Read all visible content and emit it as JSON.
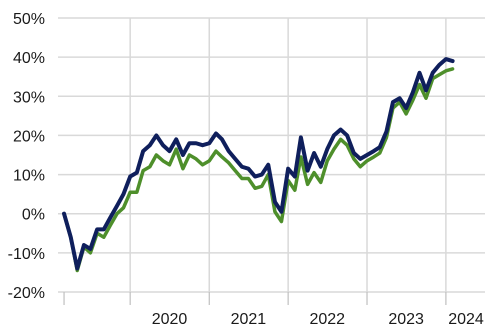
{
  "chart_data": {
    "type": "line",
    "title": "",
    "xlabel": "",
    "ylabel": "",
    "y_tick_labels": [
      "50%",
      "40%",
      "30%",
      "20%",
      "10%",
      "0%",
      "-10%",
      "-20%"
    ],
    "y_ticks": [
      50,
      40,
      30,
      20,
      10,
      0,
      -10,
      -20
    ],
    "x_tick_labels": [
      "2020",
      "2021",
      "2022",
      "2023",
      "2024"
    ],
    "x_ticks": [
      "2020-01-01",
      "2021-01-01",
      "2022-01-01",
      "2023-01-01",
      "2024-01-01"
    ],
    "ylim": [
      -20,
      50
    ],
    "xlim": [
      "2019-02-01",
      "2024-06-30"
    ],
    "grid": true,
    "legend": "none",
    "series": [
      {
        "color": "#0f1f5c",
        "points": [
          [
            "2019-03-01",
            0
          ],
          [
            "2019-04-01",
            -6
          ],
          [
            "2019-05-01",
            -14
          ],
          [
            "2019-06-01",
            -8
          ],
          [
            "2019-07-01",
            -9
          ],
          [
            "2019-08-01",
            -4
          ],
          [
            "2019-09-01",
            -4
          ],
          [
            "2019-10-01",
            -1
          ],
          [
            "2019-11-01",
            2
          ],
          [
            "2019-12-01",
            5
          ],
          [
            "2020-01-01",
            9.5
          ],
          [
            "2020-02-01",
            10.5
          ],
          [
            "2020-03-01",
            16
          ],
          [
            "2020-04-01",
            17.5
          ],
          [
            "2020-05-01",
            20
          ],
          [
            "2020-06-01",
            17.5
          ],
          [
            "2020-07-01",
            16
          ],
          [
            "2020-08-01",
            19
          ],
          [
            "2020-09-01",
            15
          ],
          [
            "2020-10-01",
            18
          ],
          [
            "2020-11-01",
            18
          ],
          [
            "2020-12-01",
            17.5
          ],
          [
            "2021-01-01",
            18
          ],
          [
            "2021-02-01",
            20.5
          ],
          [
            "2021-03-01",
            19
          ],
          [
            "2021-04-01",
            16
          ],
          [
            "2021-05-01",
            14
          ],
          [
            "2021-06-01",
            12
          ],
          [
            "2021-07-01",
            11.5
          ],
          [
            "2021-08-01",
            9.5
          ],
          [
            "2021-09-01",
            10
          ],
          [
            "2021-10-01",
            12.5
          ],
          [
            "2021-11-01",
            3
          ],
          [
            "2021-12-01",
            0.5
          ],
          [
            "2022-01-01",
            11.5
          ],
          [
            "2022-02-01",
            9.5
          ],
          [
            "2022-03-01",
            19.5
          ],
          [
            "2022-04-01",
            11
          ],
          [
            "2022-05-01",
            15.5
          ],
          [
            "2022-06-01",
            12
          ],
          [
            "2022-07-01",
            16.5
          ],
          [
            "2022-08-01",
            20
          ],
          [
            "2022-09-01",
            21.5
          ],
          [
            "2022-10-01",
            20
          ],
          [
            "2022-11-01",
            15.5
          ],
          [
            "2022-12-01",
            14
          ],
          [
            "2023-01-01",
            15
          ],
          [
            "2023-02-01",
            16
          ],
          [
            "2023-03-01",
            17
          ],
          [
            "2023-04-01",
            21
          ],
          [
            "2023-05-01",
            28.5
          ],
          [
            "2023-06-01",
            29.5
          ],
          [
            "2023-07-01",
            27
          ],
          [
            "2023-08-01",
            31
          ],
          [
            "2023-09-01",
            36
          ],
          [
            "2023-10-01",
            31.5
          ],
          [
            "2023-11-01",
            36
          ],
          [
            "2023-12-01",
            38
          ],
          [
            "2024-01-01",
            39.5
          ],
          [
            "2024-02-01",
            39
          ]
        ]
      },
      {
        "color": "#4e8f2b",
        "points": [
          [
            "2019-03-01",
            0
          ],
          [
            "2019-04-01",
            -6
          ],
          [
            "2019-05-01",
            -14.5
          ],
          [
            "2019-06-01",
            -8.5
          ],
          [
            "2019-07-01",
            -10
          ],
          [
            "2019-08-01",
            -5
          ],
          [
            "2019-09-01",
            -6
          ],
          [
            "2019-10-01",
            -3
          ],
          [
            "2019-11-01",
            0
          ],
          [
            "2019-12-01",
            1.5
          ],
          [
            "2020-01-01",
            5.5
          ],
          [
            "2020-02-01",
            5.5
          ],
          [
            "2020-03-01",
            11
          ],
          [
            "2020-04-01",
            12
          ],
          [
            "2020-05-01",
            15
          ],
          [
            "2020-06-01",
            13.5
          ],
          [
            "2020-07-01",
            12.5
          ],
          [
            "2020-08-01",
            16.5
          ],
          [
            "2020-09-01",
            11.5
          ],
          [
            "2020-10-01",
            15
          ],
          [
            "2020-11-01",
            14
          ],
          [
            "2020-12-01",
            12.5
          ],
          [
            "2021-01-01",
            13.5
          ],
          [
            "2021-02-01",
            16
          ],
          [
            "2021-03-01",
            14.5
          ],
          [
            "2021-04-01",
            13
          ],
          [
            "2021-05-01",
            11
          ],
          [
            "2021-06-01",
            9
          ],
          [
            "2021-07-01",
            9
          ],
          [
            "2021-08-01",
            6.5
          ],
          [
            "2021-09-01",
            7
          ],
          [
            "2021-10-01",
            10
          ],
          [
            "2021-11-01",
            0.5
          ],
          [
            "2021-12-01",
            -2
          ],
          [
            "2022-01-01",
            8.5
          ],
          [
            "2022-02-01",
            6
          ],
          [
            "2022-03-01",
            14.5
          ],
          [
            "2022-04-01",
            7.5
          ],
          [
            "2022-05-01",
            10.5
          ],
          [
            "2022-06-01",
            8
          ],
          [
            "2022-07-01",
            13.5
          ],
          [
            "2022-08-01",
            16.5
          ],
          [
            "2022-09-01",
            19
          ],
          [
            "2022-10-01",
            17.5
          ],
          [
            "2022-11-01",
            14
          ],
          [
            "2022-12-01",
            12
          ],
          [
            "2023-01-01",
            13.5
          ],
          [
            "2023-02-01",
            14.5
          ],
          [
            "2023-03-01",
            15.5
          ],
          [
            "2023-04-01",
            19.5
          ],
          [
            "2023-05-01",
            27
          ],
          [
            "2023-06-01",
            28.5
          ],
          [
            "2023-07-01",
            25.5
          ],
          [
            "2023-08-01",
            29
          ],
          [
            "2023-09-01",
            33
          ],
          [
            "2023-10-01",
            29.5
          ],
          [
            "2023-11-01",
            34.5
          ],
          [
            "2023-12-01",
            35.5
          ],
          [
            "2024-01-01",
            36.5
          ],
          [
            "2024-02-01",
            37
          ]
        ]
      }
    ]
  }
}
